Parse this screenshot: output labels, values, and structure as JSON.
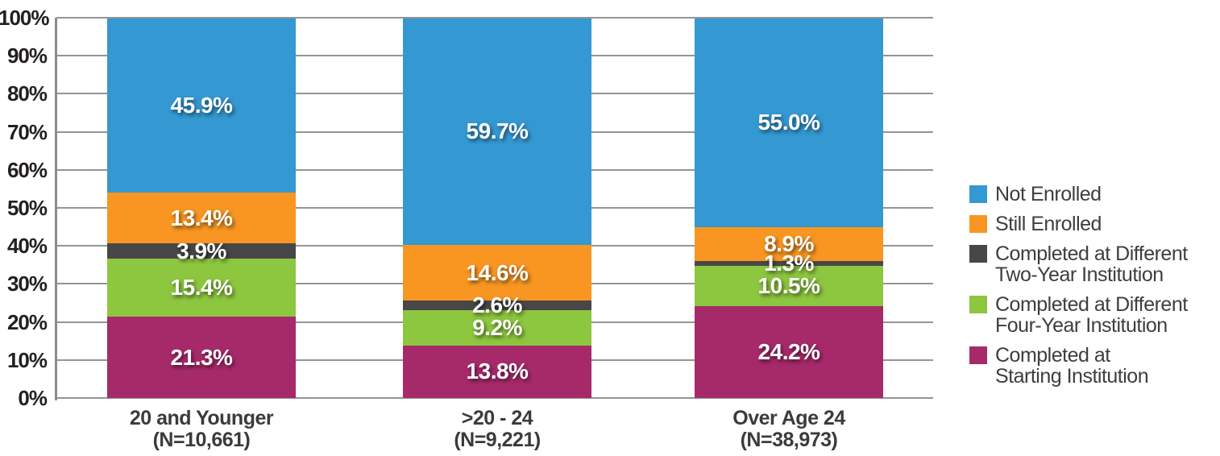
{
  "chart_data": {
    "type": "bar",
    "stacked": true,
    "title": "",
    "grid": true,
    "legend_position": "right",
    "value_suffix": "%",
    "y_axis": {
      "min": 0,
      "max": 100,
      "step": 10,
      "tick_labels": [
        "0%",
        "10%",
        "20%",
        "30%",
        "40%",
        "50%",
        "60%",
        "70%",
        "80%",
        "90%",
        "100%"
      ]
    },
    "categories": [
      {
        "label": "20 and Younger",
        "sublabel": "(N=10,661)"
      },
      {
        "label": ">20 - 24",
        "sublabel": "(N=9,221)"
      },
      {
        "label": "Over Age 24",
        "sublabel": "(N=38,973)"
      }
    ],
    "series": [
      {
        "name": "Not Enrolled",
        "name_lines": [
          "Not Enrolled"
        ],
        "color": "#3498D2",
        "values": [
          45.9,
          59.7,
          55.0
        ]
      },
      {
        "name": "Still Enrolled",
        "name_lines": [
          "Still Enrolled"
        ],
        "color": "#F89621",
        "values": [
          13.4,
          14.6,
          8.9
        ]
      },
      {
        "name": "Completed at Different Two-Year Institution",
        "name_lines": [
          "Completed at Different",
          "Two-Year Institution"
        ],
        "color": "#474747",
        "values": [
          3.9,
          2.6,
          1.3
        ]
      },
      {
        "name": "Completed at Different Four-Year Institution",
        "name_lines": [
          "Completed at Different",
          "Four-Year Institution"
        ],
        "color": "#8DC63F",
        "values": [
          15.4,
          9.2,
          10.5
        ]
      },
      {
        "name": "Completed at Starting Institution",
        "name_lines": [
          "Completed at",
          "Starting Institution"
        ],
        "color": "#A62A6A",
        "values": [
          21.3,
          13.8,
          24.2
        ]
      }
    ],
    "colors": {
      "background": "#FFFFFF",
      "gridline": "#939598",
      "axis": "#8A8C8F",
      "y_label": "#231F20",
      "x_label": "#3B3A3C",
      "legend_text": "#3E3D3F",
      "value_label": "#FFFFFF"
    }
  }
}
